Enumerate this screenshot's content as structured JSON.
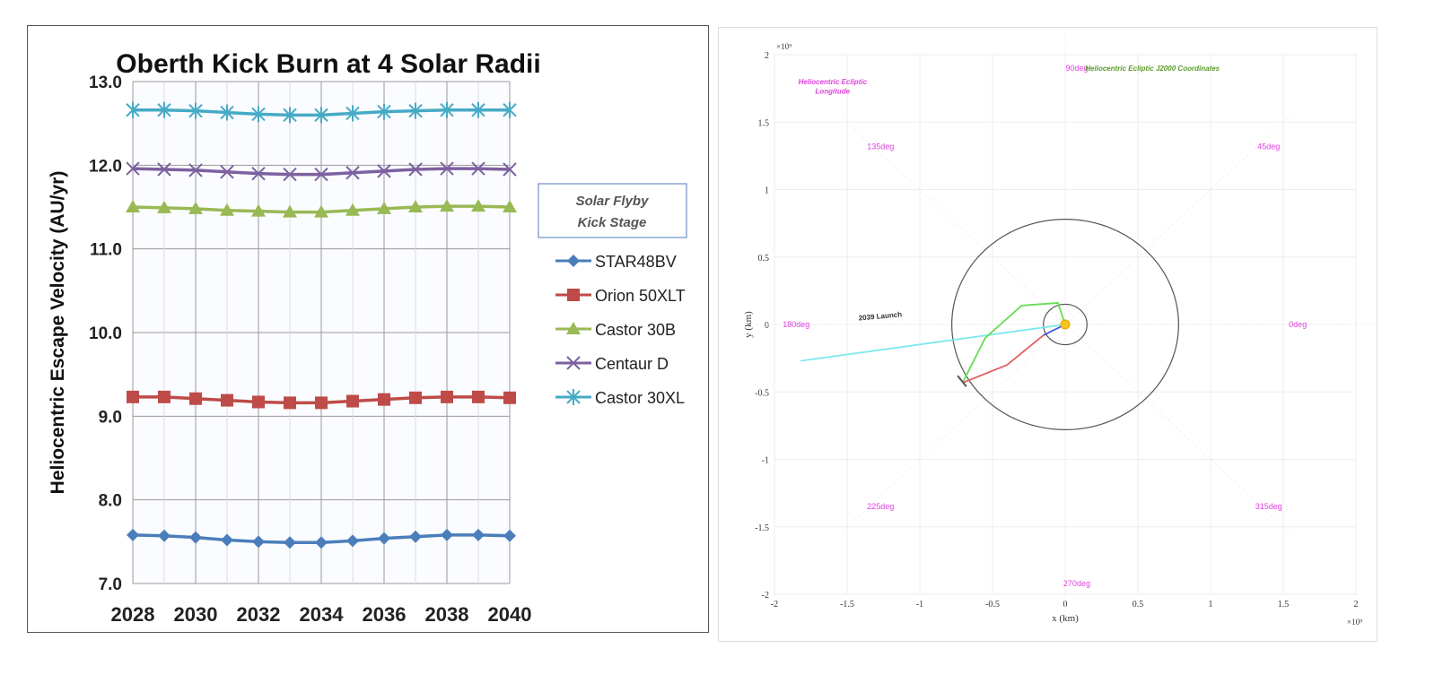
{
  "chart_data": [
    {
      "type": "line",
      "title": "Oberth Kick Burn at 4 Solar Radii",
      "xlabel": "",
      "ylabel": "Heliocentric Escape Velocity  (AU/yr)",
      "ylim": [
        7.0,
        13.0
      ],
      "xlim": [
        2028,
        2040
      ],
      "yticks": [
        "7.0",
        "8.0",
        "9.0",
        "10.0",
        "11.0",
        "12.0",
        "13.0"
      ],
      "xticks": [
        "2028",
        "2030",
        "2032",
        "2034",
        "2036",
        "2038",
        "2040"
      ],
      "grid": true,
      "legend_title": "Solar Flyby Kick Stage",
      "legend_placement": "right",
      "x": [
        2028,
        2029,
        2030,
        2031,
        2032,
        2033,
        2034,
        2035,
        2036,
        2037,
        2038,
        2039,
        2040
      ],
      "series": [
        {
          "name": "STAR48BV",
          "color": "#4a7ebb",
          "marker": "diamond",
          "values": [
            7.58,
            7.57,
            7.55,
            7.52,
            7.5,
            7.49,
            7.49,
            7.51,
            7.54,
            7.56,
            7.58,
            7.58,
            7.57
          ]
        },
        {
          "name": "Orion 50XLT",
          "color": "#be4b48",
          "marker": "square",
          "values": [
            9.23,
            9.23,
            9.21,
            9.19,
            9.17,
            9.16,
            9.16,
            9.18,
            9.2,
            9.22,
            9.23,
            9.23,
            9.22
          ]
        },
        {
          "name": "Castor 30B",
          "color": "#98b954",
          "marker": "triangle",
          "values": [
            11.5,
            11.49,
            11.48,
            11.46,
            11.45,
            11.44,
            11.44,
            11.46,
            11.48,
            11.5,
            11.51,
            11.51,
            11.5
          ]
        },
        {
          "name": "Centaur D",
          "color": "#7d60a0",
          "marker": "x",
          "values": [
            11.96,
            11.95,
            11.94,
            11.92,
            11.9,
            11.89,
            11.89,
            11.91,
            11.93,
            11.95,
            11.96,
            11.96,
            11.95
          ]
        },
        {
          "name": "Castor 30XL",
          "color": "#46aac5",
          "marker": "star",
          "values": [
            12.66,
            12.66,
            12.65,
            12.63,
            12.61,
            12.6,
            12.6,
            12.62,
            12.64,
            12.65,
            12.66,
            12.66,
            12.66
          ]
        }
      ]
    },
    {
      "type": "line",
      "title": "Heliocentric Ecliptic J2000 Coordinates",
      "xlabel": "x (km)",
      "ylabel": "y (km)",
      "xlim": [
        -2,
        2
      ],
      "ylim": [
        -2,
        2
      ],
      "x_exponent": "×10⁹",
      "y_exponent": "×10⁹",
      "xticks": [
        "-2",
        "-1.5",
        "-1",
        "-0.5",
        "0",
        "0.5",
        "1",
        "1.5",
        "2"
      ],
      "yticks": [
        "-2",
        "-1.5",
        "-1",
        "-0.5",
        "0",
        "0.5",
        "1",
        "1.5",
        "2"
      ],
      "grid": true,
      "annotation_title": "Heliocentric Ecliptic Longitude",
      "launch_label": "2039 Launch",
      "angle_labels": [
        {
          "text": "0deg",
          "x": 1.6,
          "y": 0
        },
        {
          "text": "45deg",
          "x": 1.4,
          "y": 1.32
        },
        {
          "text": "90deg",
          "x": 0.08,
          "y": 1.9
        },
        {
          "text": "135deg",
          "x": -1.27,
          "y": 1.32
        },
        {
          "text": "180deg",
          "x": -1.85,
          "y": 0
        },
        {
          "text": "225deg",
          "x": -1.27,
          "y": -1.35
        },
        {
          "text": "270deg",
          "x": 0.08,
          "y": -1.92
        },
        {
          "text": "315deg",
          "x": 1.4,
          "y": -1.35
        }
      ],
      "orbits": [
        {
          "radius": 0.78,
          "color": "#555555"
        },
        {
          "radius": 0.15,
          "color": "#555555"
        }
      ],
      "series": [
        {
          "color": "#7de8ef",
          "points": [
            [
              0,
              0
            ],
            [
              -1.82,
              -0.27
            ]
          ]
        },
        {
          "color": "#66dd55",
          "points": [
            [
              0,
              0
            ],
            [
              -0.05,
              0.16
            ],
            [
              -0.3,
              0.14
            ],
            [
              -0.55,
              -0.1
            ],
            [
              -0.7,
              -0.42
            ]
          ]
        },
        {
          "color": "#e0605a",
          "points": [
            [
              -0.15,
              -0.08
            ],
            [
              -0.4,
              -0.3
            ],
            [
              -0.7,
              -0.43
            ]
          ]
        },
        {
          "color": "#4455dd",
          "points": [
            [
              0,
              0
            ],
            [
              -0.15,
              -0.08
            ]
          ]
        }
      ],
      "sun_color": "#f5c518"
    }
  ]
}
